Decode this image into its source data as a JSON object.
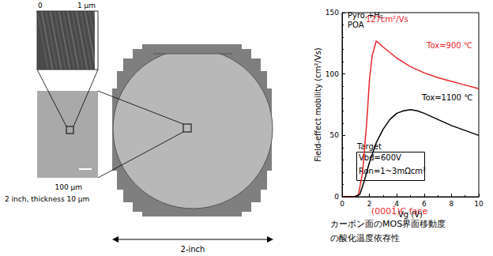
{
  "images": {
    "afm_scale": [
      "0",
      "1 μm"
    ],
    "optical_scale": "100 μm",
    "wafer_note": "2 inch, thickness 10 μm",
    "wafer_size": "2-inch"
  },
  "chart_data": {
    "type": "line",
    "x_label": "Vg (V)",
    "y_label": "Field-effect mobility (cm²/Vs)",
    "xlim": [
      0,
      10
    ],
    "ylim": [
      0,
      150
    ],
    "xticks": [
      0,
      2,
      4,
      6,
      8,
      10
    ],
    "yticks": [
      0,
      50,
      100,
      150
    ],
    "grid": false,
    "series": [
      {
        "name": "Tox=900 ℃",
        "color": "#e8262a",
        "x": [
          0,
          1,
          1.2,
          1.5,
          1.8,
          2.0,
          2.2,
          2.5,
          3,
          4,
          5,
          6,
          7,
          8,
          9,
          10
        ],
        "values": [
          0,
          0,
          2,
          20,
          60,
          95,
          115,
          127,
          122,
          113,
          106,
          101,
          97,
          94,
          91,
          88
        ]
      },
      {
        "name": "Tox=1100 ℃",
        "color": "#000000",
        "x": [
          0,
          1,
          1.3,
          1.6,
          2,
          2.5,
          3,
          3.5,
          4,
          4.5,
          5,
          5.5,
          6,
          7,
          8,
          9,
          10
        ],
        "values": [
          0,
          0,
          2,
          12,
          28,
          44,
          55,
          63,
          68,
          70,
          71,
          70,
          68,
          63,
          58,
          54,
          50
        ]
      }
    ],
    "annotations": [
      {
        "text": "Pyro.+H₂",
        "color": "#000000"
      },
      {
        "text": "POA",
        "color": "#000000"
      },
      {
        "text": "127cm²/Vs",
        "color": "#e8262a"
      },
      {
        "text": "Target",
        "color": "#000000"
      },
      {
        "text": "Vbd=600V",
        "color": "#000000"
      },
      {
        "text": "Ron=1~3mΩcm²",
        "color": "#000000"
      }
    ],
    "subtitle": "(0001̄)C face",
    "caption": [
      "カーボン面のMOS界面移動度",
      "の酸化温度依存性"
    ]
  }
}
